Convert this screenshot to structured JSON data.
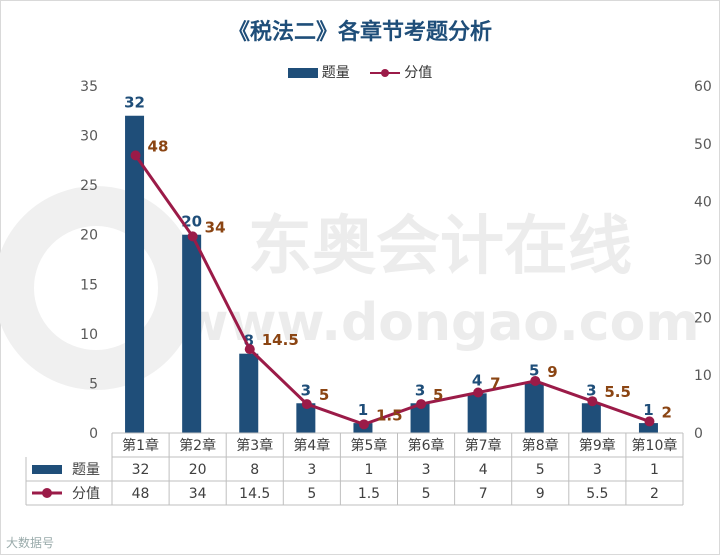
{
  "title": "《税法二》各章节考题分析",
  "legend": {
    "bar": "题量",
    "line": "分值"
  },
  "watermark_text": "东奥会计在线",
  "watermark_url": "www.dongao.com",
  "corner_mark": "大数据号",
  "chart_data": {
    "type": "bar",
    "categories": [
      "第1章",
      "第2章",
      "第3章",
      "第4章",
      "第5章",
      "第6章",
      "第7章",
      "第8章",
      "第9章",
      "第10章"
    ],
    "series": [
      {
        "name": "题量",
        "type": "bar",
        "axis": "left",
        "color": "#1f4e79",
        "values": [
          32,
          20,
          8,
          3,
          1,
          3,
          4,
          5,
          3,
          1
        ],
        "labels": [
          "32",
          "20",
          "8",
          "3",
          "1",
          "3",
          "4",
          "5",
          "3",
          "1"
        ]
      },
      {
        "name": "分值",
        "type": "line",
        "axis": "right",
        "color": "#9b1b48",
        "values": [
          48,
          34,
          14.5,
          5,
          1.5,
          5,
          7,
          9,
          5.5,
          2
        ],
        "labels": [
          "48",
          "34",
          "14.5",
          "5",
          "1.5",
          "5",
          "7",
          "9",
          "5.5",
          "2"
        ]
      }
    ],
    "ylim_left": [
      0,
      35
    ],
    "yticks_left": [
      "0",
      "5",
      "10",
      "15",
      "20",
      "25",
      "30",
      "35"
    ],
    "ylim_right": [
      0,
      60
    ],
    "yticks_right": [
      "0",
      "10",
      "20",
      "30",
      "40",
      "50",
      "60"
    ],
    "grid": false,
    "legend_position": "top",
    "data_table": true
  }
}
